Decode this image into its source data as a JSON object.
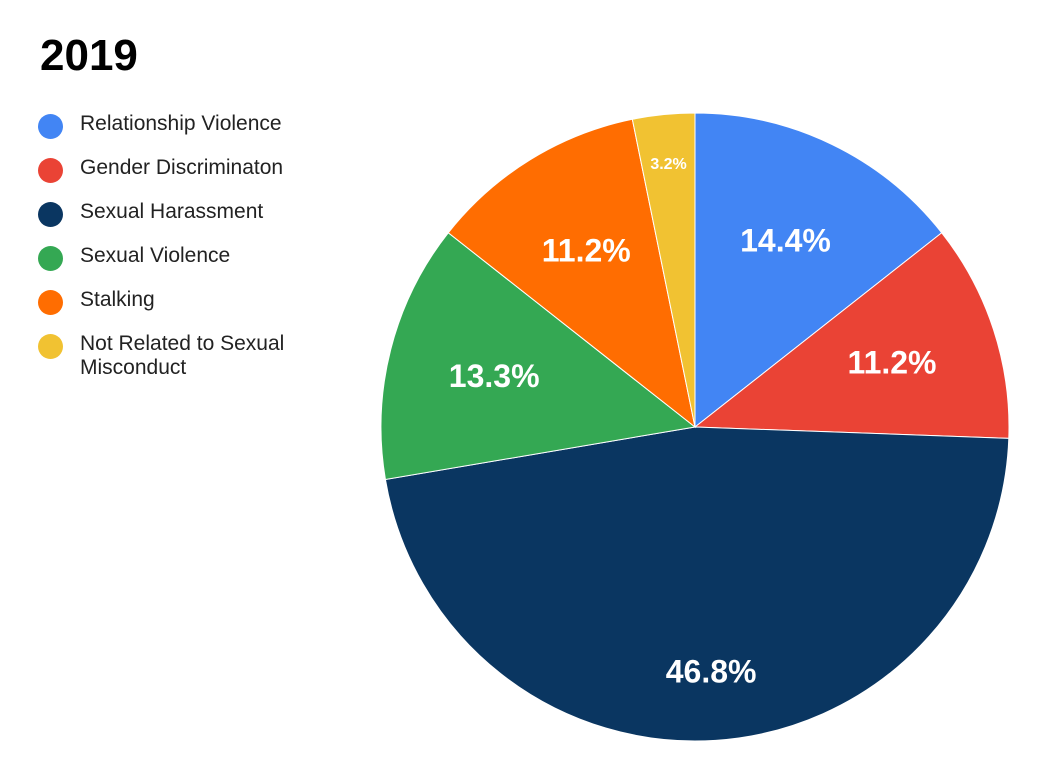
{
  "chart_data": {
    "type": "pie",
    "title": "2019",
    "legend_position": "left",
    "slices": [
      {
        "label": "Relationship Violence",
        "value": 14.4,
        "display": "14.4%",
        "color": "#4285f4"
      },
      {
        "label": "Gender Discriminaton",
        "value": 11.2,
        "display": "11.2%",
        "color": "#ea4335"
      },
      {
        "label": "Sexual Harassment",
        "value": 46.8,
        "display": "46.8%",
        "color": "#0a3661"
      },
      {
        "label": "Sexual Violence",
        "value": 13.3,
        "display": "13.3%",
        "color": "#34a853"
      },
      {
        "label": "Stalking",
        "value": 11.2,
        "display": "11.2%",
        "color": "#ff6d01"
      },
      {
        "label": "Not Related to Sexual Misconduct",
        "value": 3.2,
        "display": "3.2%",
        "color": "#f1c232"
      }
    ]
  }
}
